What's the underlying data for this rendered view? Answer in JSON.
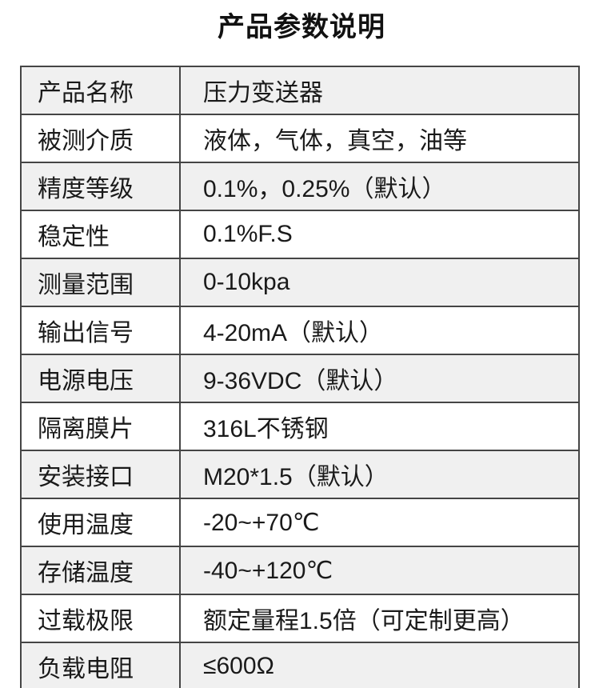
{
  "page": {
    "title": "产品参数说明"
  },
  "table": {
    "rows": [
      {
        "label": "产品名称",
        "value": "压力变送器"
      },
      {
        "label": "被测介质",
        "value": "液体，气体，真空，油等"
      },
      {
        "label": "精度等级",
        "value": "0.1%，0.25%（默认）"
      },
      {
        "label": "稳定性",
        "value": "0.1%F.S"
      },
      {
        "label": "测量范围",
        "value": "0-10kpa"
      },
      {
        "label": "输出信号",
        "value": "4-20mA（默认）"
      },
      {
        "label": "电源电压",
        "value": "9-36VDC（默认）"
      },
      {
        "label": "隔离膜片",
        "value": "316L不锈钢"
      },
      {
        "label": "安装接口",
        "value": "M20*1.5（默认）"
      },
      {
        "label": "使用温度",
        "value": "-20~+70℃"
      },
      {
        "label": "存储温度",
        "value": "-40~+120℃"
      },
      {
        "label": "过载极限",
        "value": "额定量程1.5倍（可定制更高）"
      },
      {
        "label": "负载电阻",
        "value": "≤600Ω"
      }
    ],
    "colors": {
      "row_alt_bg": "#f0f0f0",
      "row_bg": "#ffffff",
      "border": "#454545",
      "text": "#1a1a1a"
    }
  }
}
